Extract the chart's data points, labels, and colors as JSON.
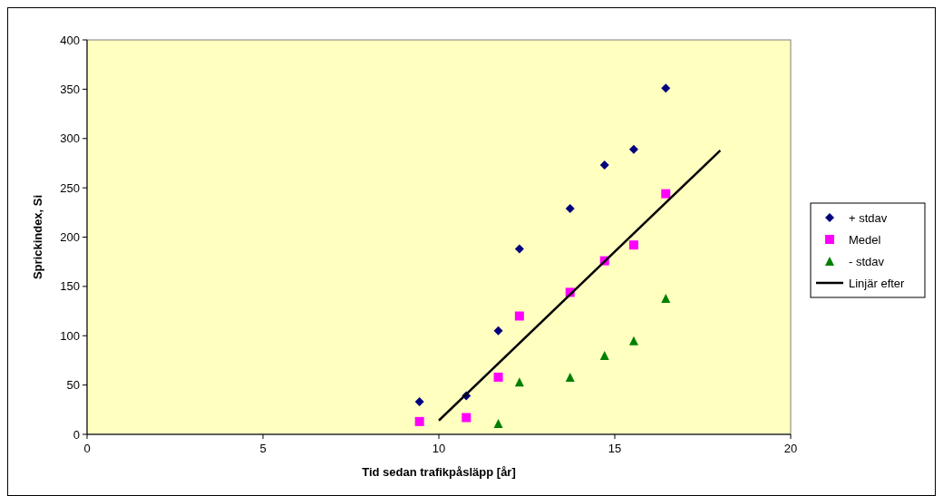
{
  "chart_data": {
    "type": "scatter",
    "xlabel": "Tid sedan trafikpåsläpp [år]",
    "ylabel": "Sprickindex, Si",
    "xlim": [
      0,
      20
    ],
    "xticks": [
      0,
      5,
      10,
      15,
      20
    ],
    "ylim": [
      0,
      400
    ],
    "yticks": [
      0,
      50,
      100,
      150,
      200,
      250,
      300,
      350,
      400
    ],
    "grid": false,
    "legend": "right",
    "x": [
      9.45,
      10.78,
      11.69,
      12.29,
      13.73,
      14.71,
      15.54,
      16.45
    ],
    "series": [
      {
        "name": "+ stdav",
        "color": "#000080",
        "marker": "diamond",
        "values": [
          33,
          39,
          105,
          188,
          229,
          273,
          289,
          351
        ]
      },
      {
        "name": "Medel",
        "color": "#ff00ff",
        "marker": "square",
        "values": [
          13,
          17,
          58,
          120,
          144,
          176,
          192,
          244
        ]
      },
      {
        "name": "- stdav",
        "color": "#008000",
        "marker": "triangle",
        "x": [
          11.69,
          12.29,
          13.73,
          14.71,
          15.54,
          16.45
        ],
        "values": [
          11,
          53,
          58,
          80,
          95,
          138
        ]
      },
      {
        "name": "Linjär efter",
        "type": "line",
        "color": "#000000",
        "marker": "none",
        "line_style": "solid",
        "x": [
          10,
          18
        ],
        "values": [
          14,
          288
        ]
      }
    ]
  }
}
